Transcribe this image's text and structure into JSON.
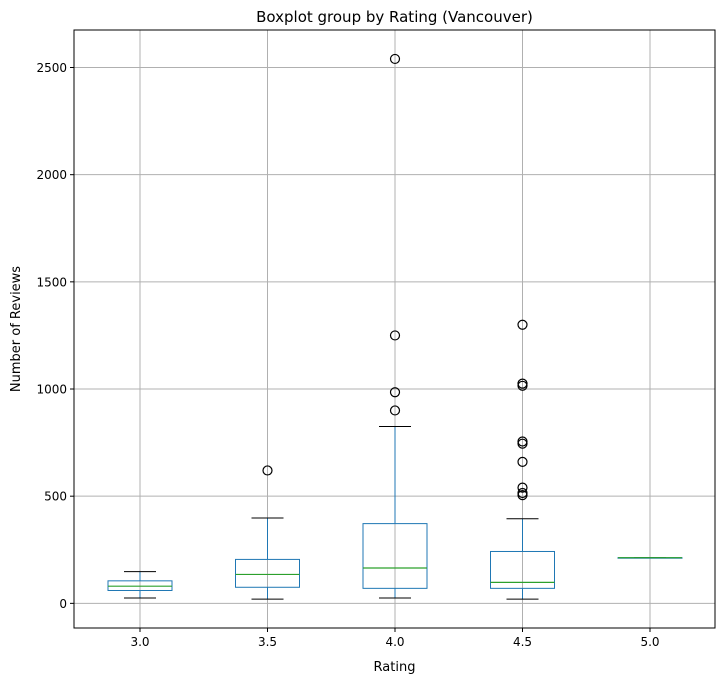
{
  "chart_data": {
    "type": "boxplot",
    "title": "Boxplot group by Rating (Vancouver)",
    "xlabel": "Rating",
    "ylabel": "Number of Reviews",
    "categories": [
      "3.0",
      "3.5",
      "4.0",
      "4.5",
      "5.0"
    ],
    "ylim": [
      -115,
      2675
    ],
    "yticks": [
      0,
      500,
      1000,
      1500,
      2000,
      2500
    ],
    "grid": true,
    "boxes": [
      {
        "category": "3.0",
        "whisker_low": 25,
        "q1": 60,
        "median": 80,
        "q3": 105,
        "whisker_high": 148,
        "outliers": []
      },
      {
        "category": "3.5",
        "whisker_low": 20,
        "q1": 75,
        "median": 135,
        "q3": 205,
        "whisker_high": 398,
        "outliers": [
          620
        ]
      },
      {
        "category": "4.0",
        "whisker_low": 25,
        "q1": 70,
        "median": 165,
        "q3": 372,
        "whisker_high": 825,
        "outliers": [
          900,
          985,
          1250,
          2540
        ]
      },
      {
        "category": "4.5",
        "whisker_low": 20,
        "q1": 70,
        "median": 98,
        "q3": 242,
        "whisker_high": 395,
        "outliers": [
          505,
          515,
          540,
          660,
          745,
          755,
          1015,
          1025,
          1300
        ]
      },
      {
        "category": "5.0",
        "whisker_low": 213,
        "q1": 213,
        "median": 213,
        "q3": 213,
        "whisker_high": 213,
        "outliers": []
      }
    ],
    "colors": {
      "box": "#1f77b4",
      "median": "#2ca02c",
      "whisker_cap": "#000000",
      "outlier": "#000000",
      "grid": "#b0b0b0"
    }
  }
}
